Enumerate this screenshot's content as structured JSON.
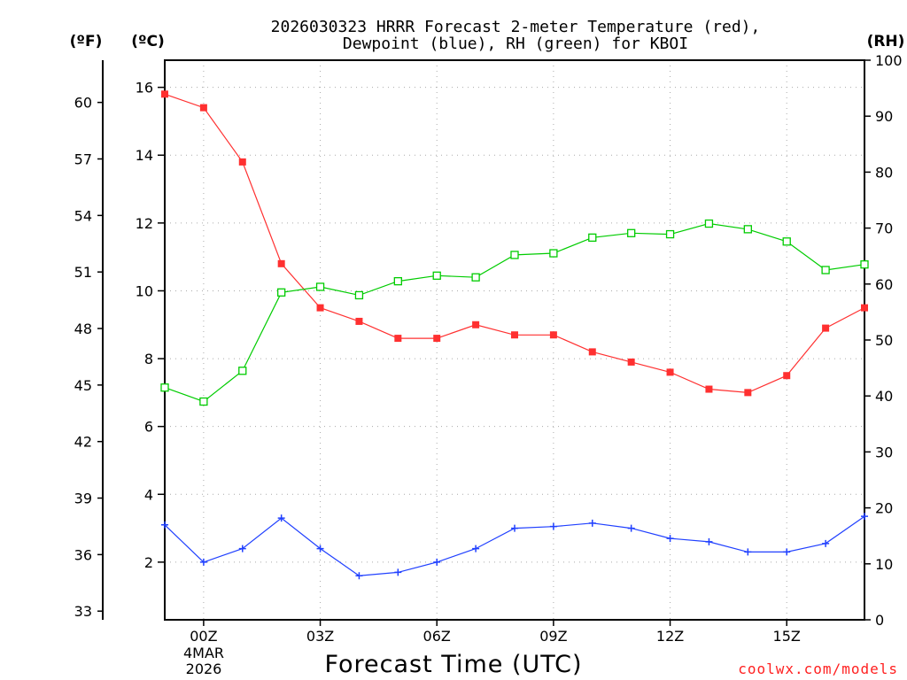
{
  "chart_data": {
    "type": "line",
    "title_lines": [
      "2026030323 HRRR Forecast 2-meter Temperature (red),",
      "Dewpoint (blue), RH (green) for KBOI"
    ],
    "units": {
      "fahrenheit": "(ºF)",
      "celsius": "(ºC)",
      "rh": "(RH)"
    },
    "xlabel": "Forecast Time (UTC)",
    "credit": "coolwx.com/models",
    "x_hours": [
      -1,
      0,
      1,
      2,
      3,
      4,
      5,
      6,
      7,
      8,
      9,
      10,
      11,
      12,
      13,
      14,
      15,
      16,
      17
    ],
    "x_ticks": [
      {
        "hour": 0,
        "label": "00Z"
      },
      {
        "hour": 3,
        "label": "03Z"
      },
      {
        "hour": 6,
        "label": "06Z"
      },
      {
        "hour": 9,
        "label": "09Z"
      },
      {
        "hour": 12,
        "label": "12Z"
      },
      {
        "hour": 15,
        "label": "15Z"
      }
    ],
    "date_label": [
      "4MAR",
      "2026"
    ],
    "celsius_axis": {
      "range": [
        0.3,
        16.8
      ],
      "ticks": [
        2,
        4,
        6,
        8,
        10,
        12,
        14,
        16
      ]
    },
    "fahrenheit_axis": {
      "ticks": [
        33,
        36,
        39,
        42,
        45,
        48,
        51,
        54,
        57,
        60
      ]
    },
    "rh_axis": {
      "range": [
        0,
        100
      ],
      "ticks": [
        0,
        10,
        20,
        30,
        40,
        50,
        60,
        70,
        80,
        90,
        100
      ]
    },
    "series": [
      {
        "name": "2-meter Temperature",
        "axis": "celsius",
        "color": "#ff3030",
        "marker": "filled-square",
        "values": [
          15.8,
          15.4,
          13.8,
          10.8,
          9.5,
          9.1,
          8.6,
          8.6,
          9.0,
          8.7,
          8.7,
          8.2,
          7.9,
          7.6,
          7.1,
          7.0,
          7.5,
          8.9,
          9.5
        ]
      },
      {
        "name": "Dewpoint",
        "axis": "celsius",
        "color": "#2040ff",
        "marker": "plus",
        "values": [
          3.1,
          2.0,
          2.4,
          3.3,
          2.4,
          1.6,
          1.7,
          2.0,
          2.4,
          3.0,
          3.05,
          3.15,
          3.0,
          2.7,
          2.6,
          2.3,
          2.3,
          2.55,
          3.35
        ]
      },
      {
        "name": "RH",
        "axis": "rh",
        "color": "#00cc00",
        "marker": "open-square",
        "values": [
          41.5,
          39,
          44.5,
          58.5,
          59.5,
          58,
          60.5,
          61.5,
          61.2,
          65.2,
          65.5,
          68.3,
          69.1,
          68.9,
          70.8,
          69.8,
          67.6,
          62.5,
          63.5
        ]
      }
    ]
  }
}
